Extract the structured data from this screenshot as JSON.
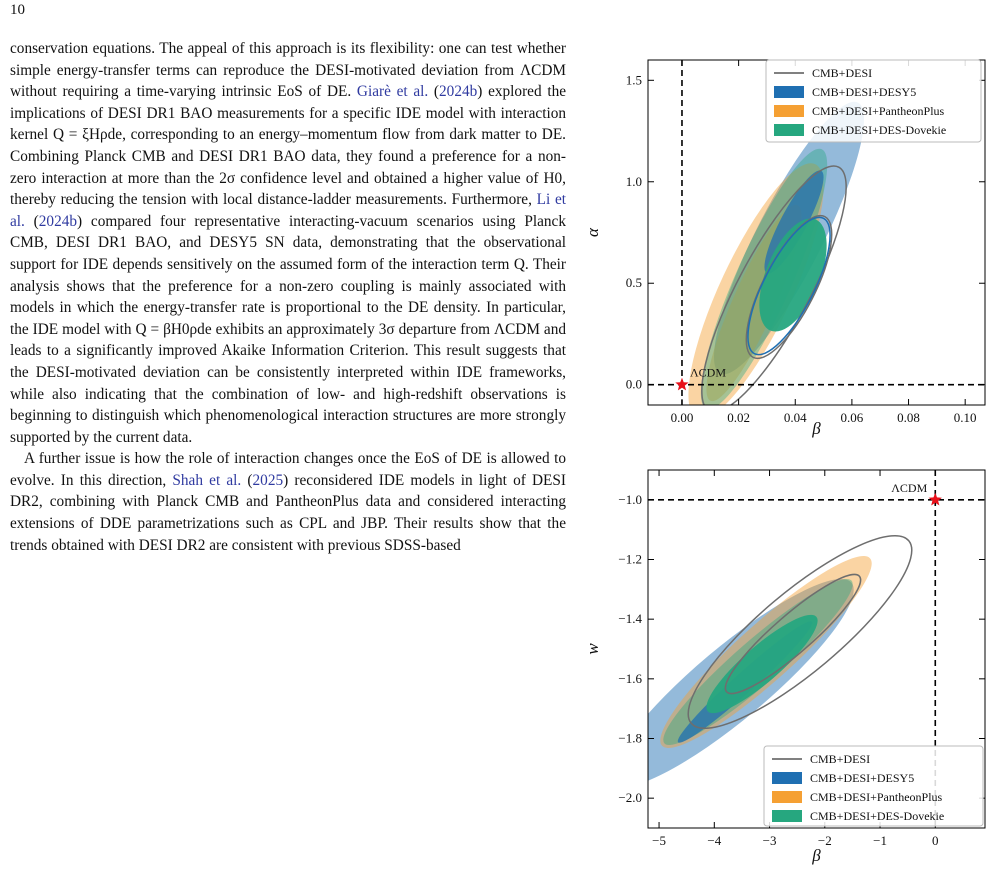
{
  "page_number": "10",
  "paragraphs": [
    [
      {
        "t": "conservation equations. The appeal of this approach is its flexibility: one can test whether simple energy-transfer terms can reproduce the DESI-motivated deviation from ΛCDM without requiring a time-varying intrinsic EoS of DE. "
      },
      {
        "t": "Giarè et al.",
        "cite": true
      },
      {
        "t": " ("
      },
      {
        "t": "2024b",
        "cite": true
      },
      {
        "t": ") explored the implications of DESI DR1 BAO measurements for a specific IDE model with interaction kernel Q = ξHρde, corresponding to an energy–momentum flow from dark matter to DE. Combining Planck CMB and DESI DR1 BAO data, they found a preference for a non-zero interaction at more than the 2σ confidence level and obtained a higher value of H0, thereby reducing the tension with local distance-ladder measurements. Furthermore, "
      },
      {
        "t": "Li et al.",
        "cite": true
      },
      {
        "t": " ("
      },
      {
        "t": "2024b",
        "cite": true
      },
      {
        "t": ") compared four representative interacting-vacuum scenarios using Planck CMB, DESI DR1 BAO, and DESY5 SN data, demonstrating that the observational support for IDE depends sensitively on the assumed form of the interaction term Q. Their analysis shows that the preference for a non-zero coupling is mainly associated with models in which the energy-transfer rate is proportional to the DE density. In particular, the IDE model with Q = βH0ρde exhibits an approximately 3σ departure from ΛCDM and leads to a significantly improved Akaike Information Criterion. This result suggests that the DESI-motivated deviation can be consistently interpreted within IDE frameworks, while also indicating that the combination of low- and high-redshift observations is beginning to distinguish which phenomenological interaction structures are more strongly supported by the current data."
      }
    ],
    [
      {
        "t": "A further issue is how the role of interaction changes once the EoS of DE is allowed to evolve. In this direction, "
      },
      {
        "t": "Shah et al.",
        "cite": true
      },
      {
        "t": " ("
      },
      {
        "t": "2025",
        "cite": true
      },
      {
        "t": ") reconsidered IDE models in light of DESI DR2, combining with Planck CMB and PantheonPlus data and considered interacting extensions of DDE parametrizations such as CPL and JBP. Their results show that the trends obtained with DESI DR2 are consistent with previous SDSS-based"
      }
    ]
  ],
  "colors": {
    "cmb_desi": "#6e6e6e",
    "desy5": "#1f6fb2",
    "pantheon": "#f5a033",
    "dovekie": "#26a77f",
    "marker": "#e8101a"
  },
  "chart_data": [
    {
      "type": "contour",
      "xlabel": "β",
      "ylabel": "α",
      "xlim": [
        -0.012,
        0.107
      ],
      "ylim": [
        -0.1,
        1.6
      ],
      "xticks": [
        "0.00",
        "0.02",
        "0.04",
        "0.06",
        "0.08",
        "0.10"
      ],
      "yticks": [
        "0.0",
        "0.5",
        "1.0",
        "1.5"
      ],
      "legend_position": "top-right",
      "reference_label": "ΛCDM",
      "reference_point": [
        0,
        0
      ],
      "series": [
        {
          "name": "CMB+DESI",
          "center": [
            0.054,
            0.51
          ],
          "legend": "line"
        },
        {
          "name": "CMB+DESI+DESY5",
          "center": [
            0.055,
            0.57
          ],
          "legend": "patch"
        },
        {
          "name": "CMB+DESI+PantheonPlus",
          "center": [
            0.05,
            0.42
          ],
          "legend": "patch"
        },
        {
          "name": "CMB+DESI+DES-Dovekie",
          "center": [
            0.051,
            0.43
          ],
          "legend": "patch"
        }
      ]
    },
    {
      "type": "contour",
      "xlabel": "β",
      "ylabel": "w",
      "xlim": [
        -5.2,
        0.9
      ],
      "ylim": [
        -2.1,
        -0.9
      ],
      "xticks": [
        "−5",
        "−4",
        "−3",
        "−2",
        "−1",
        "0"
      ],
      "yticks": [
        "−1.0",
        "−1.2",
        "−1.4",
        "−1.6",
        "−1.8",
        "−2.0"
      ],
      "legend_position": "bottom-right",
      "reference_label": "ΛCDM",
      "reference_point": [
        0,
        -1.0
      ],
      "series": [
        {
          "name": "CMB+DESI",
          "center": [
            -2.0,
            -1.44
          ],
          "legend": "line"
        },
        {
          "name": "CMB+DESI+DESY5",
          "center": [
            -2.6,
            -1.5
          ],
          "legend": "patch"
        },
        {
          "name": "CMB+DESI+PantheonPlus",
          "center": [
            -2.4,
            -1.47
          ],
          "legend": "patch"
        },
        {
          "name": "CMB+DESI+DES-Dovekie",
          "center": [
            -2.5,
            -1.48
          ],
          "legend": "patch"
        }
      ]
    }
  ]
}
